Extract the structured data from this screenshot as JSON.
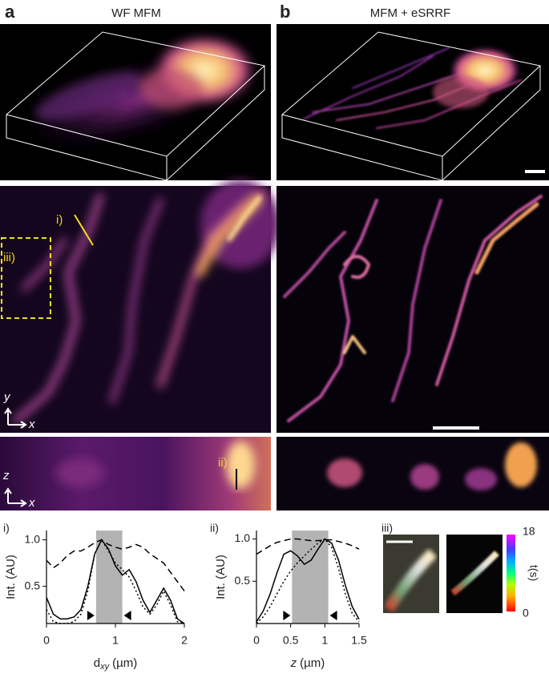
{
  "panels": {
    "a": {
      "label": "a",
      "title": "WF MFM",
      "line_label": "i)",
      "box_label": "iii)",
      "line2_label": "ii)",
      "axis_y": "y",
      "axis_x": "x",
      "axis_z": "z",
      "axis_x2": "x"
    },
    "b": {
      "label": "b",
      "title": "MFM + eSRRF"
    }
  },
  "chart_data": [
    {
      "type": "line",
      "label": "i)",
      "ylabel": "Int. (AU)",
      "xlabel": "d",
      "xlabel_sub": "xy",
      "xlabel_unit": "(µm)",
      "x": [
        0,
        0.1,
        0.2,
        0.3,
        0.4,
        0.5,
        0.6,
        0.7,
        0.8,
        0.9,
        1.0,
        1.1,
        1.2,
        1.3,
        1.4,
        1.5,
        1.6,
        1.7,
        1.8,
        1.9,
        2.0
      ],
      "series": [
        {
          "color": "#000",
          "style": "solid",
          "values": [
            0.38,
            0.2,
            0.15,
            0.15,
            0.17,
            0.25,
            0.5,
            0.85,
            1.0,
            0.9,
            0.72,
            0.62,
            0.68,
            0.55,
            0.35,
            0.22,
            0.35,
            0.48,
            0.35,
            0.15,
            0.1
          ]
        },
        {
          "color": "#000",
          "style": "dashed",
          "values": [
            0.78,
            0.7,
            0.75,
            0.83,
            0.88,
            0.88,
            0.92,
            0.97,
            1.0,
            0.95,
            0.92,
            0.9,
            0.92,
            0.95,
            0.92,
            0.85,
            0.8,
            0.75,
            0.65,
            0.55,
            0.45
          ]
        },
        {
          "color": "#000",
          "style": "dotted",
          "values": [
            0.25,
            0.12,
            0.1,
            0.1,
            0.12,
            0.2,
            0.45,
            0.85,
            1.0,
            0.88,
            0.75,
            0.68,
            0.6,
            0.45,
            0.28,
            0.2,
            0.3,
            0.45,
            0.3,
            0.12,
            0.1
          ]
        }
      ],
      "xlim": [
        0,
        2
      ],
      "ylim": [
        0.1,
        1.1
      ],
      "xticks": [
        0,
        1,
        2
      ],
      "yticks": [
        0.5,
        {
          "value": 1,
          "label": "1.0"
        }
      ],
      "shaded_range": [
        0.72,
        1.1
      ],
      "shade_color": "#b3b3b3"
    },
    {
      "type": "line",
      "label": "ii)",
      "ylabel": "Int. (AU)",
      "xlabel": "z",
      "xlabel_unit": "(µm)",
      "x": [
        0,
        0.1,
        0.2,
        0.3,
        0.4,
        0.5,
        0.6,
        0.7,
        0.8,
        0.9,
        1.0,
        1.1,
        1.2,
        1.3,
        1.4,
        1.5
      ],
      "series": [
        {
          "color": "#000",
          "style": "solid",
          "values": [
            0.02,
            0.15,
            0.35,
            0.6,
            0.82,
            0.86,
            0.8,
            0.7,
            0.75,
            0.88,
            1.0,
            0.95,
            0.75,
            0.45,
            0.2,
            0.05
          ]
        },
        {
          "color": "#000",
          "style": "dashed",
          "values": [
            0.82,
            0.87,
            0.92,
            0.96,
            0.98,
            1.0,
            1.0,
            0.99,
            0.98,
            0.98,
            0.99,
            0.99,
            0.97,
            0.95,
            0.92,
            0.88
          ]
        },
        {
          "color": "#000",
          "style": "dotted",
          "values": [
            0.0,
            0.08,
            0.2,
            0.35,
            0.5,
            0.62,
            0.72,
            0.8,
            0.88,
            0.95,
            1.0,
            0.9,
            0.65,
            0.35,
            0.12,
            0.02
          ]
        }
      ],
      "xlim": [
        0,
        1.5
      ],
      "ylim": [
        0,
        1.1
      ],
      "xticks": [
        0,
        0.5,
        {
          "value": 1,
          "label": "1"
        },
        1.5
      ],
      "yticks": [
        0.5,
        {
          "value": 1,
          "label": "1.0"
        }
      ],
      "shaded_range": [
        0.52,
        1.05
      ],
      "shade_color": "#b3b3b3"
    }
  ],
  "inset": {
    "label": "iii)",
    "colorbar": {
      "min": 0,
      "max": 18,
      "label": "t(s)"
    }
  }
}
